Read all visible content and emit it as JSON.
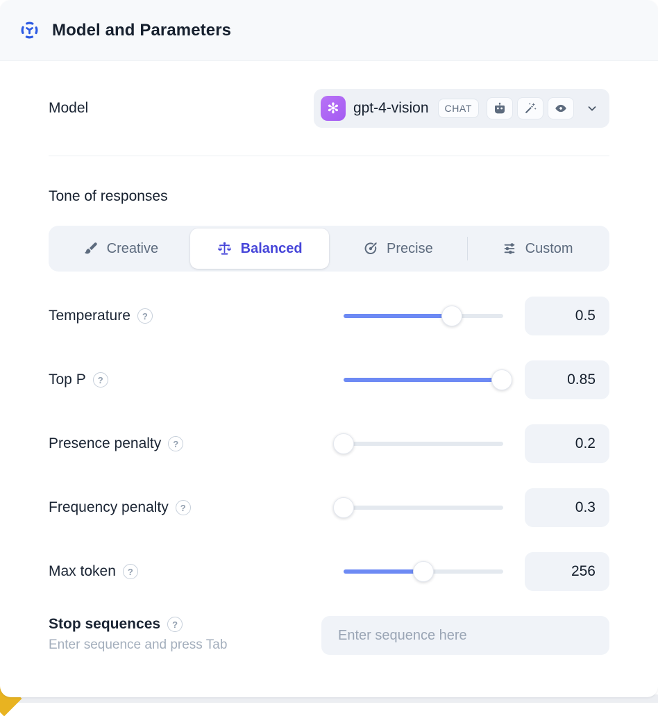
{
  "colors": {
    "accent": "#2D5BE3",
    "tab-active": "#4645D9",
    "slider-fill": "#6D8AF4",
    "logo-purple": "#A45BF2",
    "control-bg": "#F0F3F8",
    "yellow": "#E8B321"
  },
  "header": {
    "title": "Model and Parameters"
  },
  "model": {
    "label": "Model",
    "name": "gpt-4-vision",
    "type_badge": "CHAT",
    "logo_glyph": "✻",
    "capabilities": [
      "assistant-robot",
      "magic-wand",
      "vision-eye"
    ]
  },
  "tone": {
    "heading": "Tone of responses",
    "tabs": [
      {
        "label": "Creative",
        "icon": "paintbrush-icon",
        "active": false
      },
      {
        "label": "Balanced",
        "icon": "balance-scale-icon",
        "active": true
      },
      {
        "label": "Precise",
        "icon": "target-icon",
        "active": false
      },
      {
        "label": "Custom",
        "icon": "sliders-icon",
        "active": false
      }
    ]
  },
  "parameters": [
    {
      "label": "Temperature",
      "value": "0.5",
      "fill_percent": 68
    },
    {
      "label": "Top P",
      "value": "0.85",
      "fill_percent": 99
    },
    {
      "label": "Presence penalty",
      "value": "0.2",
      "fill_percent": 0
    },
    {
      "label": "Frequency penalty",
      "value": "0.3",
      "fill_percent": 0
    },
    {
      "label": "Max token",
      "value": "256",
      "fill_percent": 50
    }
  ],
  "stop_sequences": {
    "label": "Stop sequences",
    "hint": "Enter sequence and press Tab",
    "placeholder": "Enter sequence here"
  },
  "ui": {
    "help_glyph": "?"
  }
}
